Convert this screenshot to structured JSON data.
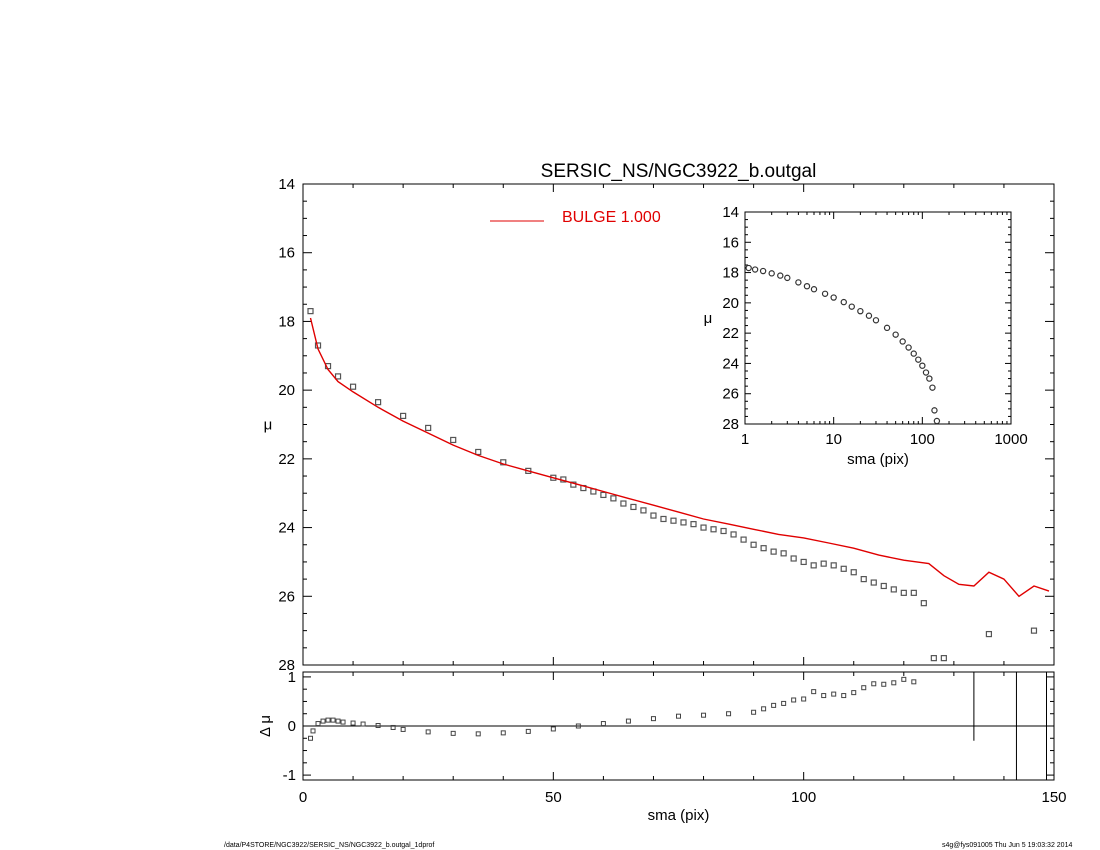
{
  "footer": {
    "path": "/data/P4STORE/NGC3922/SERSIC_NS/NGC3922_b.outgal_1dprof",
    "stamp": "s4g@fys091005  Thu Jun  5 19:03:32 2014"
  },
  "chart_data": [
    {
      "id": "main",
      "type": "scatter",
      "title": "SERSIC_NS/NGC3922_b.outgal",
      "xlabel": "",
      "ylabel": "μ",
      "xlim": [
        0,
        150
      ],
      "ylim": [
        28,
        14
      ],
      "yticks": [
        14,
        16,
        18,
        20,
        22,
        24,
        26,
        28
      ],
      "legend": {
        "label": "BULGE  1.000",
        "color": "#e00000",
        "placement": "top-center"
      },
      "series": [
        {
          "name": "",
          "kind": "points",
          "color": "#555555",
          "x": [
            1.5,
            3,
            5,
            7,
            10,
            15,
            20,
            25,
            30,
            35,
            40,
            45,
            50,
            52,
            54,
            56,
            58,
            60,
            62,
            64,
            66,
            68,
            70,
            72,
            74,
            76,
            78,
            80,
            82,
            84,
            86,
            88,
            90,
            92,
            94,
            96,
            98,
            100,
            102,
            104,
            106,
            108,
            110,
            112,
            114,
            116,
            118,
            120,
            122,
            124,
            126,
            128,
            137,
            146
          ],
          "y": [
            17.7,
            18.7,
            19.3,
            19.6,
            19.9,
            20.35,
            20.75,
            21.1,
            21.45,
            21.8,
            22.1,
            22.35,
            22.55,
            22.6,
            22.75,
            22.85,
            22.95,
            23.05,
            23.15,
            23.3,
            23.4,
            23.5,
            23.65,
            23.75,
            23.8,
            23.85,
            23.9,
            24.0,
            24.05,
            24.1,
            24.2,
            24.35,
            24.5,
            24.6,
            24.7,
            24.75,
            24.9,
            25.0,
            25.1,
            25.05,
            25.1,
            25.2,
            25.3,
            25.5,
            25.6,
            25.7,
            25.8,
            25.9,
            25.9,
            26.2,
            27.8,
            27.8,
            27.1,
            27.0
          ]
        },
        {
          "name": "BULGE  1.000",
          "kind": "line",
          "color": "#e00000",
          "x": [
            1.5,
            3,
            5,
            7,
            10,
            15,
            20,
            25,
            30,
            35,
            40,
            45,
            50,
            55,
            60,
            65,
            70,
            75,
            80,
            85,
            90,
            95,
            100,
            105,
            110,
            115,
            120,
            125,
            128,
            131,
            134,
            137,
            140,
            143,
            146,
            149
          ],
          "y": [
            17.9,
            18.8,
            19.4,
            19.75,
            20.05,
            20.5,
            20.9,
            21.25,
            21.6,
            21.9,
            22.15,
            22.35,
            22.55,
            22.75,
            22.95,
            23.15,
            23.35,
            23.55,
            23.75,
            23.9,
            24.05,
            24.2,
            24.3,
            24.45,
            24.6,
            24.8,
            24.95,
            25.05,
            25.4,
            25.65,
            25.7,
            25.3,
            25.5,
            26.0,
            25.7,
            25.85
          ]
        }
      ]
    },
    {
      "id": "inset",
      "type": "scatter",
      "xscale": "log",
      "xlabel": "sma (pix)",
      "ylabel": "μ",
      "xlim": [
        1,
        1000
      ],
      "ylim": [
        28,
        14
      ],
      "xticks": [
        1,
        10,
        100,
        1000
      ],
      "yticks": [
        14,
        16,
        18,
        20,
        22,
        24,
        26,
        28
      ],
      "series": [
        {
          "name": "",
          "kind": "points",
          "color": "#333333",
          "x": [
            1.1,
            1.3,
            1.6,
            2,
            2.5,
            3,
            4,
            5,
            6,
            8,
            10,
            13,
            16,
            20,
            25,
            30,
            40,
            50,
            60,
            70,
            80,
            90,
            100,
            110,
            120,
            130,
            137,
            146
          ],
          "y": [
            17.7,
            17.8,
            17.9,
            18.05,
            18.2,
            18.35,
            18.65,
            18.9,
            19.1,
            19.4,
            19.65,
            19.95,
            20.25,
            20.55,
            20.85,
            21.15,
            21.65,
            22.1,
            22.55,
            22.95,
            23.35,
            23.75,
            24.15,
            24.6,
            25.0,
            25.6,
            27.1,
            27.8
          ]
        }
      ]
    },
    {
      "id": "residual",
      "type": "scatter",
      "xlabel": "sma (pix)",
      "ylabel": "Δ μ",
      "xlim": [
        0,
        150
      ],
      "ylim": [
        -1.1,
        1.1
      ],
      "xticks": [
        0,
        50,
        100,
        150
      ],
      "yticks": [
        1,
        0,
        -1
      ],
      "series": [
        {
          "name": "",
          "kind": "points",
          "color": "#444444",
          "x": [
            1.5,
            2,
            3,
            4,
            5,
            6,
            7,
            8,
            10,
            12,
            15,
            18,
            20,
            25,
            30,
            35,
            40,
            45,
            50,
            55,
            60,
            65,
            70,
            75,
            80,
            85,
            90,
            92,
            94,
            96,
            98,
            100,
            102,
            104,
            106,
            108,
            110,
            112,
            114,
            116,
            118,
            120,
            122
          ],
          "y": [
            -0.25,
            -0.1,
            0.05,
            0.1,
            0.12,
            0.12,
            0.1,
            0.08,
            0.06,
            0.04,
            0.01,
            -0.03,
            -0.07,
            -0.12,
            -0.15,
            -0.16,
            -0.14,
            -0.11,
            -0.06,
            0.0,
            0.05,
            0.1,
            0.15,
            0.2,
            0.22,
            0.25,
            0.28,
            0.35,
            0.42,
            0.46,
            0.53,
            0.55,
            0.7,
            0.62,
            0.65,
            0.62,
            0.68,
            0.78,
            0.86,
            0.85,
            0.88,
            0.95,
            0.9
          ]
        },
        {
          "name": "",
          "kind": "vlines",
          "color": "#000000",
          "x": [
            134,
            142.5,
            148.5
          ]
        }
      ]
    }
  ]
}
